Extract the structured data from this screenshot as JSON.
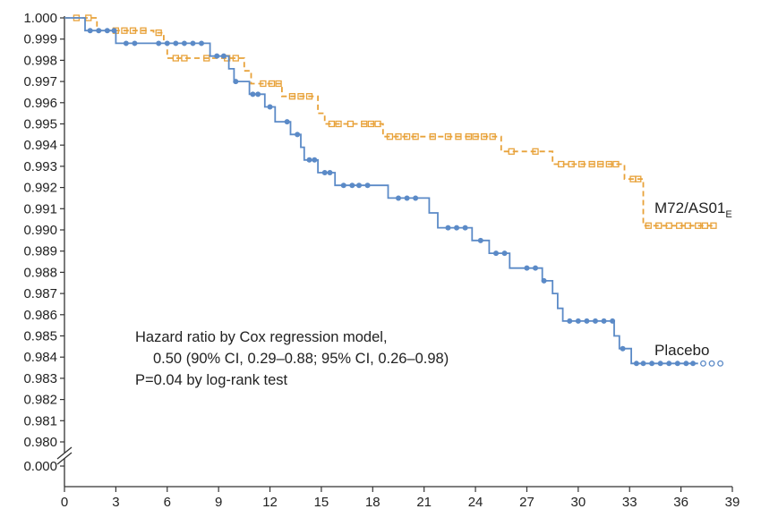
{
  "chart_data": {
    "type": "line",
    "title": "",
    "xlabel": "",
    "ylabel": "",
    "xlim": [
      0,
      39
    ],
    "ylim": [
      0.98,
      1.0
    ],
    "broken_y_axis": true,
    "y_axis_break_lower_value": 0.0,
    "x_ticks": [
      "0",
      "3",
      "6",
      "9",
      "12",
      "15",
      "18",
      "21",
      "24",
      "27",
      "30",
      "33",
      "36",
      "39"
    ],
    "y_ticks": [
      "1.000",
      "0.999",
      "0.998",
      "0.997",
      "0.996",
      "0.995",
      "0.994",
      "0.993",
      "0.992",
      "0.991",
      "0.990",
      "0.989",
      "0.988",
      "0.987",
      "0.986",
      "0.985",
      "0.984",
      "0.983",
      "0.982",
      "0.981",
      "0.980"
    ],
    "y_tick_lower": "0.000",
    "series": [
      {
        "name_main": "M72/AS01",
        "name_sub": "E",
        "color": "#E8A23A",
        "style": "dashed",
        "steps": [
          [
            0,
            1.0
          ],
          [
            1.9,
            0.9994
          ],
          [
            5.2,
            0.9993
          ],
          [
            5.8,
            0.9988
          ],
          [
            6.0,
            0.9981
          ],
          [
            10.5,
            0.9975
          ],
          [
            10.9,
            0.9969
          ],
          [
            12.7,
            0.9963
          ],
          [
            14.8,
            0.9955
          ],
          [
            15.2,
            0.995
          ],
          [
            18.6,
            0.9944
          ],
          [
            25.5,
            0.9937
          ],
          [
            28.5,
            0.9931
          ],
          [
            32.7,
            0.9924
          ],
          [
            33.8,
            0.9902
          ],
          [
            38.0,
            0.9902
          ]
        ],
        "censor_x": [
          0.7,
          1.4,
          3.0,
          3.5,
          4.0,
          4.6,
          5.5,
          6.5,
          7.0,
          8.3,
          9.5,
          10.0,
          11.6,
          12.1,
          12.5,
          13.3,
          13.8,
          14.3,
          15.6,
          16.0,
          16.7,
          17.5,
          17.9,
          18.3,
          19.0,
          19.5,
          20.0,
          20.5,
          21.5,
          22.4,
          23.0,
          23.6,
          24.0,
          24.5,
          25.0,
          26.1,
          27.5,
          29.0,
          29.6,
          30.2,
          30.8,
          31.3,
          31.8,
          32.2,
          33.2,
          33.5,
          34.1,
          34.7,
          35.3,
          35.9,
          36.4,
          37.0,
          37.4,
          37.9
        ]
      },
      {
        "name": "Placebo",
        "color": "#5B8AC7",
        "style": "solid",
        "steps": [
          [
            0,
            1.0
          ],
          [
            1.2,
            0.9994
          ],
          [
            3.0,
            0.9988
          ],
          [
            5.2,
            0.9988
          ],
          [
            8.5,
            0.9982
          ],
          [
            9.6,
            0.9976
          ],
          [
            9.9,
            0.997
          ],
          [
            10.8,
            0.9964
          ],
          [
            11.7,
            0.9958
          ],
          [
            12.3,
            0.9951
          ],
          [
            13.2,
            0.9945
          ],
          [
            13.8,
            0.9939
          ],
          [
            14.0,
            0.9933
          ],
          [
            14.8,
            0.9927
          ],
          [
            15.8,
            0.9921
          ],
          [
            18.9,
            0.9915
          ],
          [
            21.3,
            0.9908
          ],
          [
            21.8,
            0.9901
          ],
          [
            23.8,
            0.9895
          ],
          [
            24.8,
            0.9889
          ],
          [
            26.0,
            0.9882
          ],
          [
            27.9,
            0.9876
          ],
          [
            28.5,
            0.987
          ],
          [
            28.8,
            0.9863
          ],
          [
            29.1,
            0.9857
          ],
          [
            32.1,
            0.985
          ],
          [
            32.4,
            0.9844
          ],
          [
            33.1,
            0.9837
          ],
          [
            37.0,
            0.9837
          ]
        ],
        "censor_x": [
          1.5,
          2.0,
          2.5,
          2.9,
          3.6,
          4.1,
          5.5,
          6.0,
          6.5,
          7.0,
          7.5,
          8.0,
          8.9,
          9.3,
          10.0,
          11.0,
          11.3,
          12.0,
          13.0,
          13.6,
          14.3,
          14.6,
          15.2,
          15.5,
          16.3,
          16.8,
          17.2,
          17.7,
          19.5,
          20.0,
          20.5,
          22.4,
          22.9,
          23.4,
          24.3,
          25.2,
          25.7,
          27.0,
          27.5,
          28.0,
          29.5,
          30.0,
          30.5,
          31.0,
          31.5,
          32.0,
          32.6,
          33.4,
          33.8,
          34.3,
          34.8,
          35.3,
          35.8,
          36.3,
          36.7
        ],
        "censor_x_open": [
          37.3,
          37.8,
          38.3
        ]
      }
    ],
    "annotation_lines": [
      "Hazard ratio by Cox regression model,",
      "0.50 (90% CI, 0.29–0.88; 95% CI, 0.26–0.98)",
      "P=0.04 by log-rank test"
    ]
  }
}
